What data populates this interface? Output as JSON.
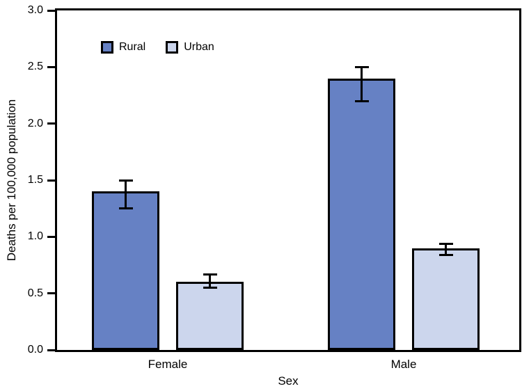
{
  "chart_data": {
    "type": "bar",
    "title": "",
    "xlabel": "Sex",
    "ylabel": "Deaths per 100,000 population",
    "categories": [
      "Female",
      "Male"
    ],
    "series": [
      {
        "name": "Rural",
        "color": "#6681C4",
        "values": [
          1.4,
          2.4
        ],
        "ci_low": [
          1.25,
          2.2
        ],
        "ci_high": [
          1.5,
          2.5
        ]
      },
      {
        "name": "Urban",
        "color": "#CCD6ED",
        "values": [
          0.6,
          0.9
        ],
        "ci_low": [
          0.55,
          0.84
        ],
        "ci_high": [
          0.67,
          0.94
        ]
      }
    ],
    "ylim": [
      0.0,
      3.0
    ],
    "ytick_labels": [
      "0.0",
      "0.5",
      "1.0",
      "1.5",
      "2.0",
      "2.5",
      "3.0"
    ],
    "grid": false,
    "error_bars": true,
    "legend_position": "top-left-inside",
    "axis_color": "#000000",
    "bar_border_color": "#000000",
    "background_color": "#FFFFFF"
  }
}
